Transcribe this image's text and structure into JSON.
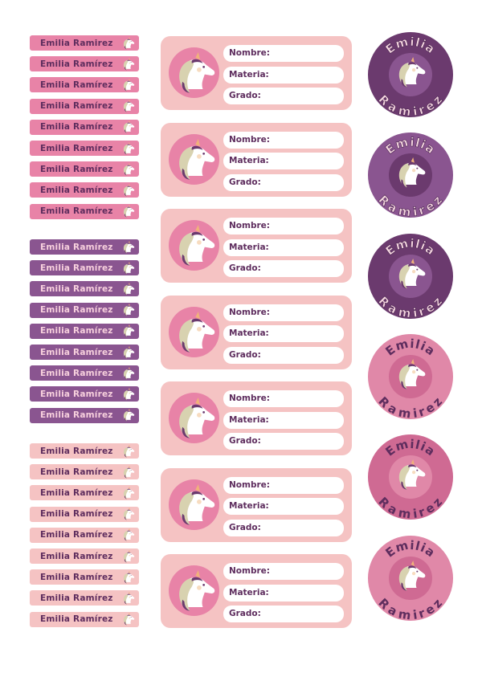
{
  "name_first": "Emilia",
  "name_last": "Ramirez",
  "small_labels": [
    {
      "group": "pink",
      "bg": "#e883a7",
      "fg": "#5e2d5e",
      "items": [
        "Emilia Ramirez",
        "Emilia Ramírez",
        "Emilia Ramírez",
        "Emilia Ramírez",
        "Emilia Ramírez",
        "Emilia Ramírez",
        "Emilia Ramírez",
        "Emilia Ramírez",
        "Emilia Ramírez"
      ]
    },
    {
      "group": "purple",
      "bg": "#8a5590",
      "fg": "#f7d0dd",
      "items": [
        "Emilia Ramírez",
        "Emilia Ramírez",
        "Emilia Ramírez",
        "Emilia Ramírez",
        "Emilia Ramírez",
        "Emilia Ramírez",
        "Emilia Ramírez",
        "Emilia Ramírez",
        "Emilia Ramírez"
      ]
    },
    {
      "group": "light",
      "bg": "#f5c3c3",
      "fg": "#5e2d5e",
      "items": [
        "Emilia Ramírez",
        "Emilia Ramírez",
        "Emilia Ramírez",
        "Emilia Ramírez",
        "Emilia Ramírez",
        "Emilia Ramírez",
        "Emilia Ramírez",
        "Emilia Ramírez",
        "Emilia Ramírez"
      ]
    }
  ],
  "big_labels": {
    "count": 7,
    "fields": [
      "Nombre:",
      "Materia:",
      "Grado:"
    ],
    "disc_color": "#e883a7"
  },
  "circles": [
    {
      "outer": "#6b3a6e",
      "inner": "#8a5590",
      "text": "#f5d6e0",
      "stroke": "#4a2450"
    },
    {
      "outer": "#8a5590",
      "inner": "#6b3a6e",
      "text": "#f5d6e0",
      "stroke": "#4a2450"
    },
    {
      "outer": "#6b3a6e",
      "inner": "#8a5590",
      "text": "#f5d6e0",
      "stroke": "#4a2450"
    },
    {
      "outer": "#e088a8",
      "inner": "#cf6a93",
      "text": "#5e2d5e",
      "stroke": "none"
    },
    {
      "outer": "#cf6a93",
      "inner": "#e088a8",
      "text": "#5e2d5e",
      "stroke": "none"
    },
    {
      "outer": "#e088a8",
      "inner": "#cf6a93",
      "text": "#5e2d5e",
      "stroke": "none"
    }
  ]
}
